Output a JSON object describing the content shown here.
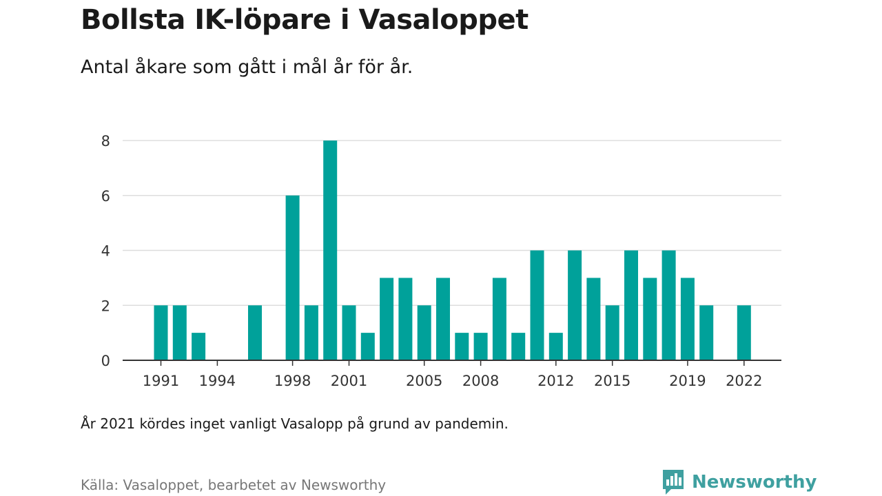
{
  "header": {
    "title": "Bollsta IK-löpare i Vasaloppet",
    "subtitle": "Antal åkare som gått i mål år för år."
  },
  "footer": {
    "note": "År 2021 kördes inget vanligt Vasalopp på grund av pandemin.",
    "source": "Källa: Vasaloppet, bearbetet av Newsworthy",
    "brand": "Newsworthy"
  },
  "colors": {
    "bar": "#00a19a",
    "brand": "#3fa0a0"
  },
  "chart_data": {
    "type": "bar",
    "title": "Bollsta IK-löpare i Vasaloppet",
    "subtitle": "Antal åkare som gått i mål år för år.",
    "xlabel": "",
    "ylabel": "",
    "ylim": [
      0,
      8
    ],
    "y_ticks": [
      0,
      2,
      4,
      6,
      8
    ],
    "x_ticks": [
      1991,
      1994,
      1998,
      2001,
      2005,
      2008,
      2012,
      2015,
      2019,
      2022
    ],
    "grid": "horizontal",
    "categories": [
      1991,
      1992,
      1993,
      1994,
      1995,
      1996,
      1997,
      1998,
      1999,
      2000,
      2001,
      2002,
      2003,
      2004,
      2005,
      2006,
      2007,
      2008,
      2009,
      2010,
      2011,
      2012,
      2013,
      2014,
      2015,
      2016,
      2017,
      2018,
      2019,
      2020,
      2021,
      2022
    ],
    "values": [
      2,
      2,
      1,
      0,
      0,
      2,
      0,
      6,
      2,
      8,
      2,
      1,
      3,
      3,
      2,
      3,
      1,
      1,
      3,
      1,
      4,
      1,
      4,
      3,
      2,
      4,
      3,
      4,
      3,
      2,
      0,
      2
    ]
  }
}
